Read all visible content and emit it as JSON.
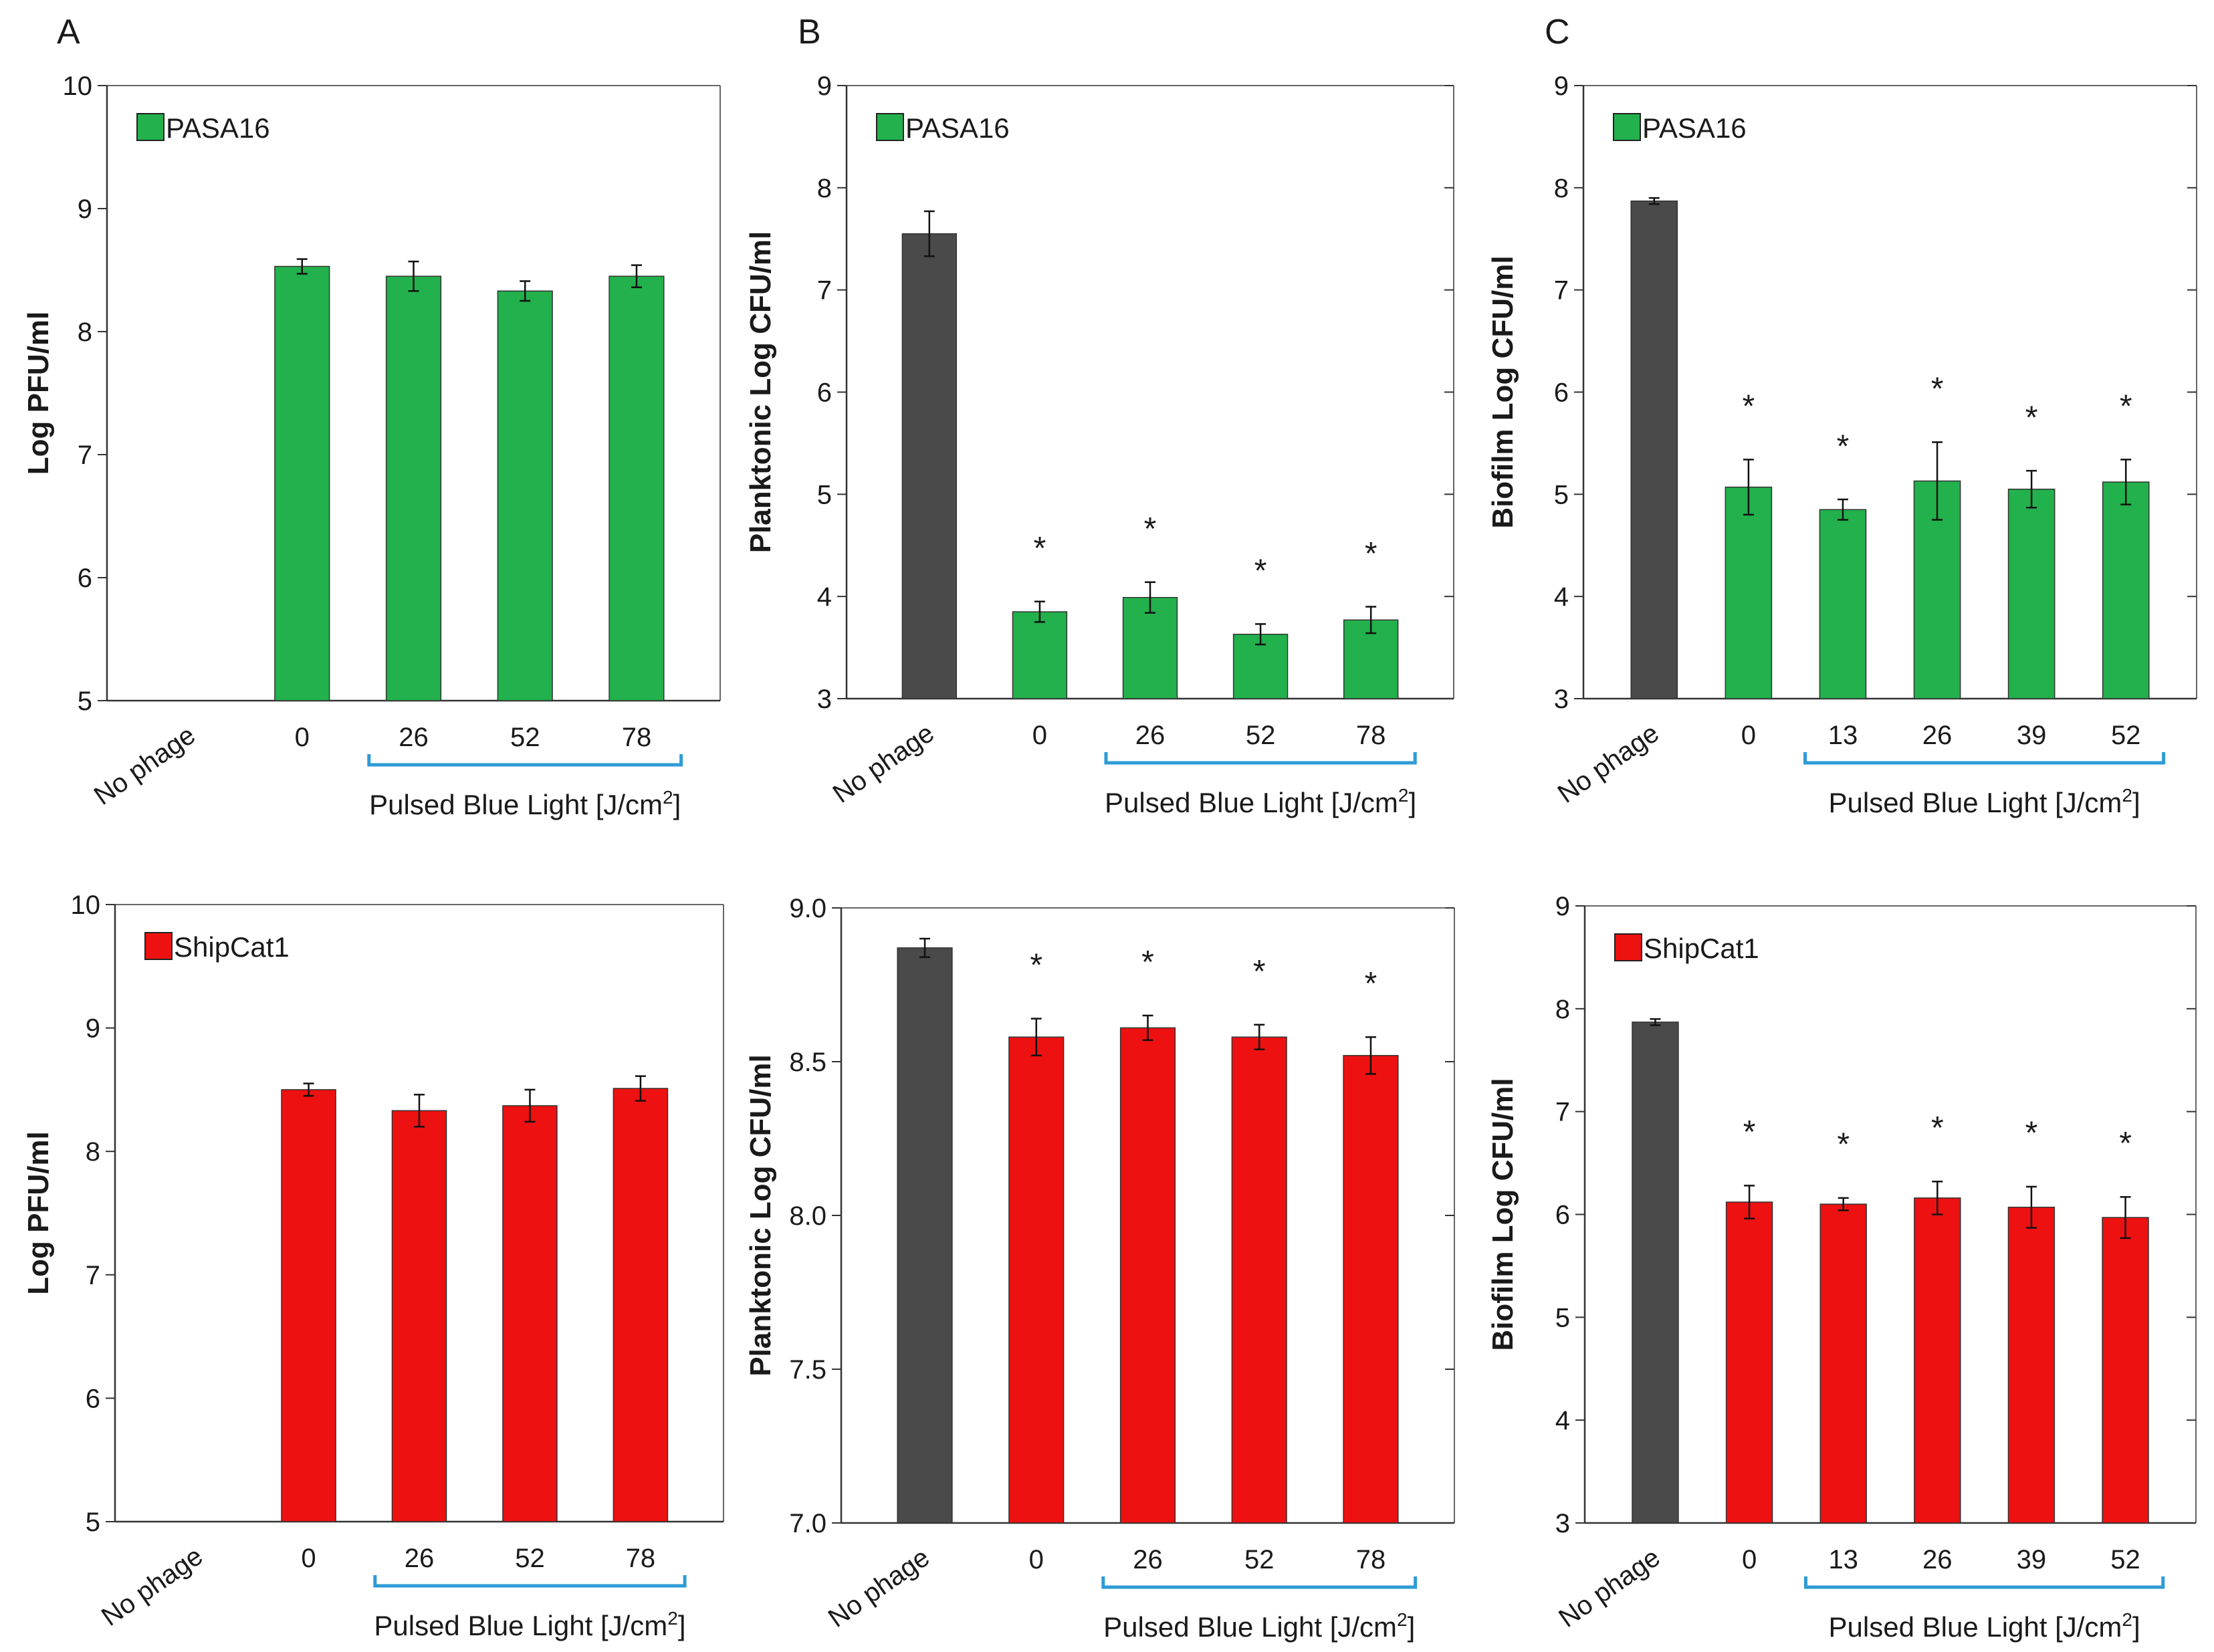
{
  "colors": {
    "green": "#22b14c",
    "red": "#ee1111",
    "gray": "#4a4a4a",
    "bracket": "#2e9bd6",
    "axis": "#333333"
  },
  "chart_data": [
    {
      "type": "bar",
      "panel_label": "A",
      "row": "top",
      "ylabel": "Log PFU/ml",
      "ylim": [
        5,
        10
      ],
      "yticks": [
        "5",
        "6",
        "7",
        "8",
        "9",
        "10"
      ],
      "categories": [
        "No phage",
        "0",
        "26",
        "52",
        "78"
      ],
      "xlabel_pre": "Pulsed Blue Light [J/cm",
      "xlabel_sup": "2",
      "xlabel_post": "]",
      "bracket": [
        2,
        4
      ],
      "legend": "PASA16",
      "legend_color": "green",
      "series": [
        {
          "name": "PASA16",
          "values": [
            null,
            8.53,
            8.45,
            8.33,
            8.45
          ],
          "errors": [
            null,
            0.06,
            0.12,
            0.08,
            0.09
          ],
          "colors": [
            "green",
            "green",
            "green",
            "green",
            "green"
          ],
          "stars": [
            false,
            false,
            false,
            false,
            false
          ]
        }
      ]
    },
    {
      "type": "bar",
      "panel_label": "B",
      "row": "top",
      "ylabel": "Planktonic  Log CFU/ml",
      "ylim": [
        3,
        9
      ],
      "yticks": [
        "3",
        "4",
        "5",
        "6",
        "7",
        "8",
        "9"
      ],
      "categories": [
        "No phage",
        "0",
        "26",
        "52",
        "78"
      ],
      "xlabel_pre": "Pulsed Blue Light [J/cm",
      "xlabel_sup": "2",
      "xlabel_post": "]",
      "bracket": [
        2,
        4
      ],
      "legend": "PASA16",
      "legend_color": "green",
      "series": [
        {
          "name": "PASA16",
          "values": [
            7.55,
            3.85,
            3.99,
            3.63,
            3.77
          ],
          "errors": [
            0.22,
            0.1,
            0.15,
            0.1,
            0.13
          ],
          "colors": [
            "gray",
            "green",
            "green",
            "green",
            "green"
          ],
          "stars": [
            false,
            true,
            true,
            true,
            true
          ]
        }
      ]
    },
    {
      "type": "bar",
      "panel_label": "C",
      "row": "top",
      "ylabel": "Biofilm  Log CFU/ml",
      "ylim": [
        3,
        9
      ],
      "yticks": [
        "3",
        "4",
        "5",
        "6",
        "7",
        "8",
        "9"
      ],
      "categories": [
        "No phage",
        "0",
        "13",
        "26",
        "39",
        "52"
      ],
      "xlabel_pre": "Pulsed Blue Light [J/cm",
      "xlabel_sup": "2",
      "xlabel_post": "]",
      "bracket": [
        2,
        5
      ],
      "legend": "PASA16",
      "legend_color": "green",
      "series": [
        {
          "name": "PASA16",
          "values": [
            7.87,
            5.07,
            4.85,
            5.13,
            5.05,
            5.12
          ],
          "errors": [
            0.03,
            0.27,
            0.1,
            0.38,
            0.18,
            0.22
          ],
          "colors": [
            "gray",
            "green",
            "green",
            "green",
            "green",
            "green"
          ],
          "stars": [
            false,
            true,
            true,
            true,
            true,
            true
          ]
        }
      ]
    },
    {
      "type": "bar",
      "panel_label": "",
      "row": "bottom",
      "ylabel": "Log PFU/ml",
      "ylim": [
        5,
        10
      ],
      "yticks": [
        "5",
        "6",
        "7",
        "8",
        "9",
        "10"
      ],
      "categories": [
        "No phage",
        "0",
        "26",
        "52",
        "78"
      ],
      "xlabel_pre": "Pulsed Blue Light [J/cm",
      "xlabel_sup": "2",
      "xlabel_post": "]",
      "bracket": [
        2,
        4
      ],
      "legend": "ShipCat1",
      "legend_color": "red",
      "series": [
        {
          "name": "ShipCat1",
          "values": [
            null,
            8.5,
            8.33,
            8.37,
            8.51
          ],
          "errors": [
            null,
            0.05,
            0.13,
            0.13,
            0.1
          ],
          "colors": [
            "red",
            "red",
            "red",
            "red",
            "red"
          ],
          "stars": [
            false,
            false,
            false,
            false,
            false
          ]
        }
      ]
    },
    {
      "type": "bar",
      "panel_label": "",
      "row": "bottom",
      "ylabel": "Planktonic  Log CFU/ml",
      "ylim": [
        7.0,
        9.0
      ],
      "yticks": [
        "7.0",
        "7.5",
        "8.0",
        "8.5",
        "9.0"
      ],
      "categories": [
        "No phage",
        "0",
        "26",
        "52",
        "78"
      ],
      "xlabel_pre": "Pulsed Blue Light [J/cm",
      "xlabel_sup": "2",
      "xlabel_post": "]",
      "bracket": [
        2,
        4
      ],
      "legend": "",
      "legend_color": "red",
      "series": [
        {
          "name": "ShipCat1",
          "values": [
            8.87,
            8.58,
            8.61,
            8.58,
            8.52
          ],
          "errors": [
            0.03,
            0.06,
            0.04,
            0.04,
            0.06
          ],
          "colors": [
            "gray",
            "red",
            "red",
            "red",
            "red"
          ],
          "stars": [
            false,
            true,
            true,
            true,
            true
          ]
        }
      ]
    },
    {
      "type": "bar",
      "panel_label": "",
      "row": "bottom",
      "ylabel": "Biofilm  Log CFU/ml",
      "ylim": [
        3,
        9
      ],
      "yticks": [
        "3",
        "4",
        "5",
        "6",
        "7",
        "8",
        "9"
      ],
      "categories": [
        "No phage",
        "0",
        "13",
        "26",
        "39",
        "52"
      ],
      "xlabel_pre": "Pulsed Blue Light [J/cm",
      "xlabel_sup": "2",
      "xlabel_post": "]",
      "bracket": [
        2,
        5
      ],
      "legend": "ShipCat1",
      "legend_color": "red",
      "series": [
        {
          "name": "ShipCat1",
          "values": [
            7.87,
            6.12,
            6.1,
            6.16,
            6.07,
            5.97
          ],
          "errors": [
            0.03,
            0.16,
            0.06,
            0.16,
            0.2,
            0.2
          ],
          "colors": [
            "gray",
            "red",
            "red",
            "red",
            "red",
            "red"
          ],
          "stars": [
            false,
            true,
            true,
            true,
            true,
            true
          ]
        }
      ]
    }
  ]
}
